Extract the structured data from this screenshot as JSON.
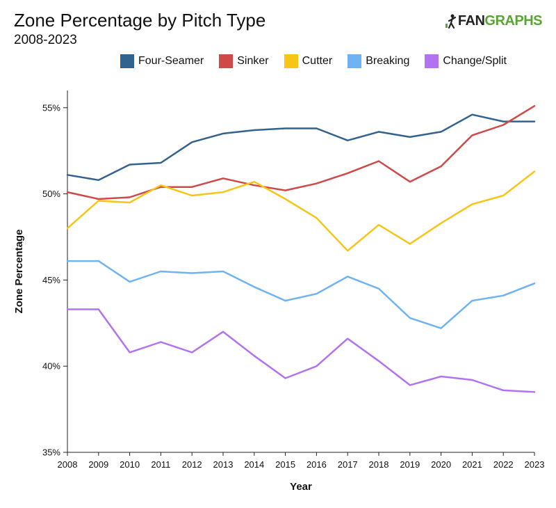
{
  "header": {
    "title": "Zone Percentage by Pitch Type",
    "subtitle": "2008-2023",
    "brand": {
      "prefix": "FAN",
      "suffix": "GRAPHS",
      "icon": "fangraphs-logo-icon"
    }
  },
  "colors": {
    "Four-Seamer": "#32628e",
    "Sinker": "#d04848",
    "Cutter": "#f7c516",
    "Breaking": "#6fb3f3",
    "Change/Split": "#b173ef"
  },
  "chart_data": {
    "type": "line",
    "title": "Zone Percentage by Pitch Type",
    "subtitle": "2008-2023",
    "xlabel": "Year",
    "ylabel": "Zone Percentage",
    "x": [
      2008,
      2009,
      2010,
      2011,
      2012,
      2013,
      2014,
      2015,
      2016,
      2017,
      2018,
      2019,
      2020,
      2021,
      2022,
      2023
    ],
    "ylim": [
      35,
      56
    ],
    "yticks": [
      35,
      40,
      45,
      50,
      55
    ],
    "ytick_labels": [
      "35%",
      "40%",
      "45%",
      "50%",
      "55%"
    ],
    "grid": false,
    "legend_position": "top",
    "series": [
      {
        "name": "Four-Seamer",
        "values": [
          51.1,
          50.8,
          51.7,
          51.8,
          53.0,
          53.5,
          53.7,
          53.8,
          53.8,
          53.1,
          53.6,
          53.3,
          53.6,
          54.6,
          54.2,
          54.2
        ]
      },
      {
        "name": "Sinker",
        "values": [
          50.1,
          49.7,
          49.8,
          50.4,
          50.4,
          50.9,
          50.5,
          50.2,
          50.6,
          51.2,
          51.9,
          50.7,
          51.6,
          53.4,
          54.0,
          55.1
        ]
      },
      {
        "name": "Cutter",
        "values": [
          48.0,
          49.6,
          49.5,
          50.5,
          49.9,
          50.1,
          50.7,
          49.7,
          48.6,
          46.7,
          48.2,
          47.1,
          48.3,
          49.4,
          49.9,
          51.3
        ]
      },
      {
        "name": "Breaking",
        "values": [
          46.1,
          46.1,
          44.9,
          45.5,
          45.4,
          45.5,
          44.6,
          43.8,
          44.2,
          45.2,
          44.5,
          42.8,
          42.2,
          43.8,
          44.1,
          44.8
        ]
      },
      {
        "name": "Change/Split",
        "values": [
          43.3,
          43.3,
          40.8,
          41.4,
          40.8,
          42.0,
          40.6,
          39.3,
          40.0,
          41.6,
          40.3,
          38.9,
          39.4,
          39.2,
          38.6,
          38.5
        ]
      }
    ]
  }
}
